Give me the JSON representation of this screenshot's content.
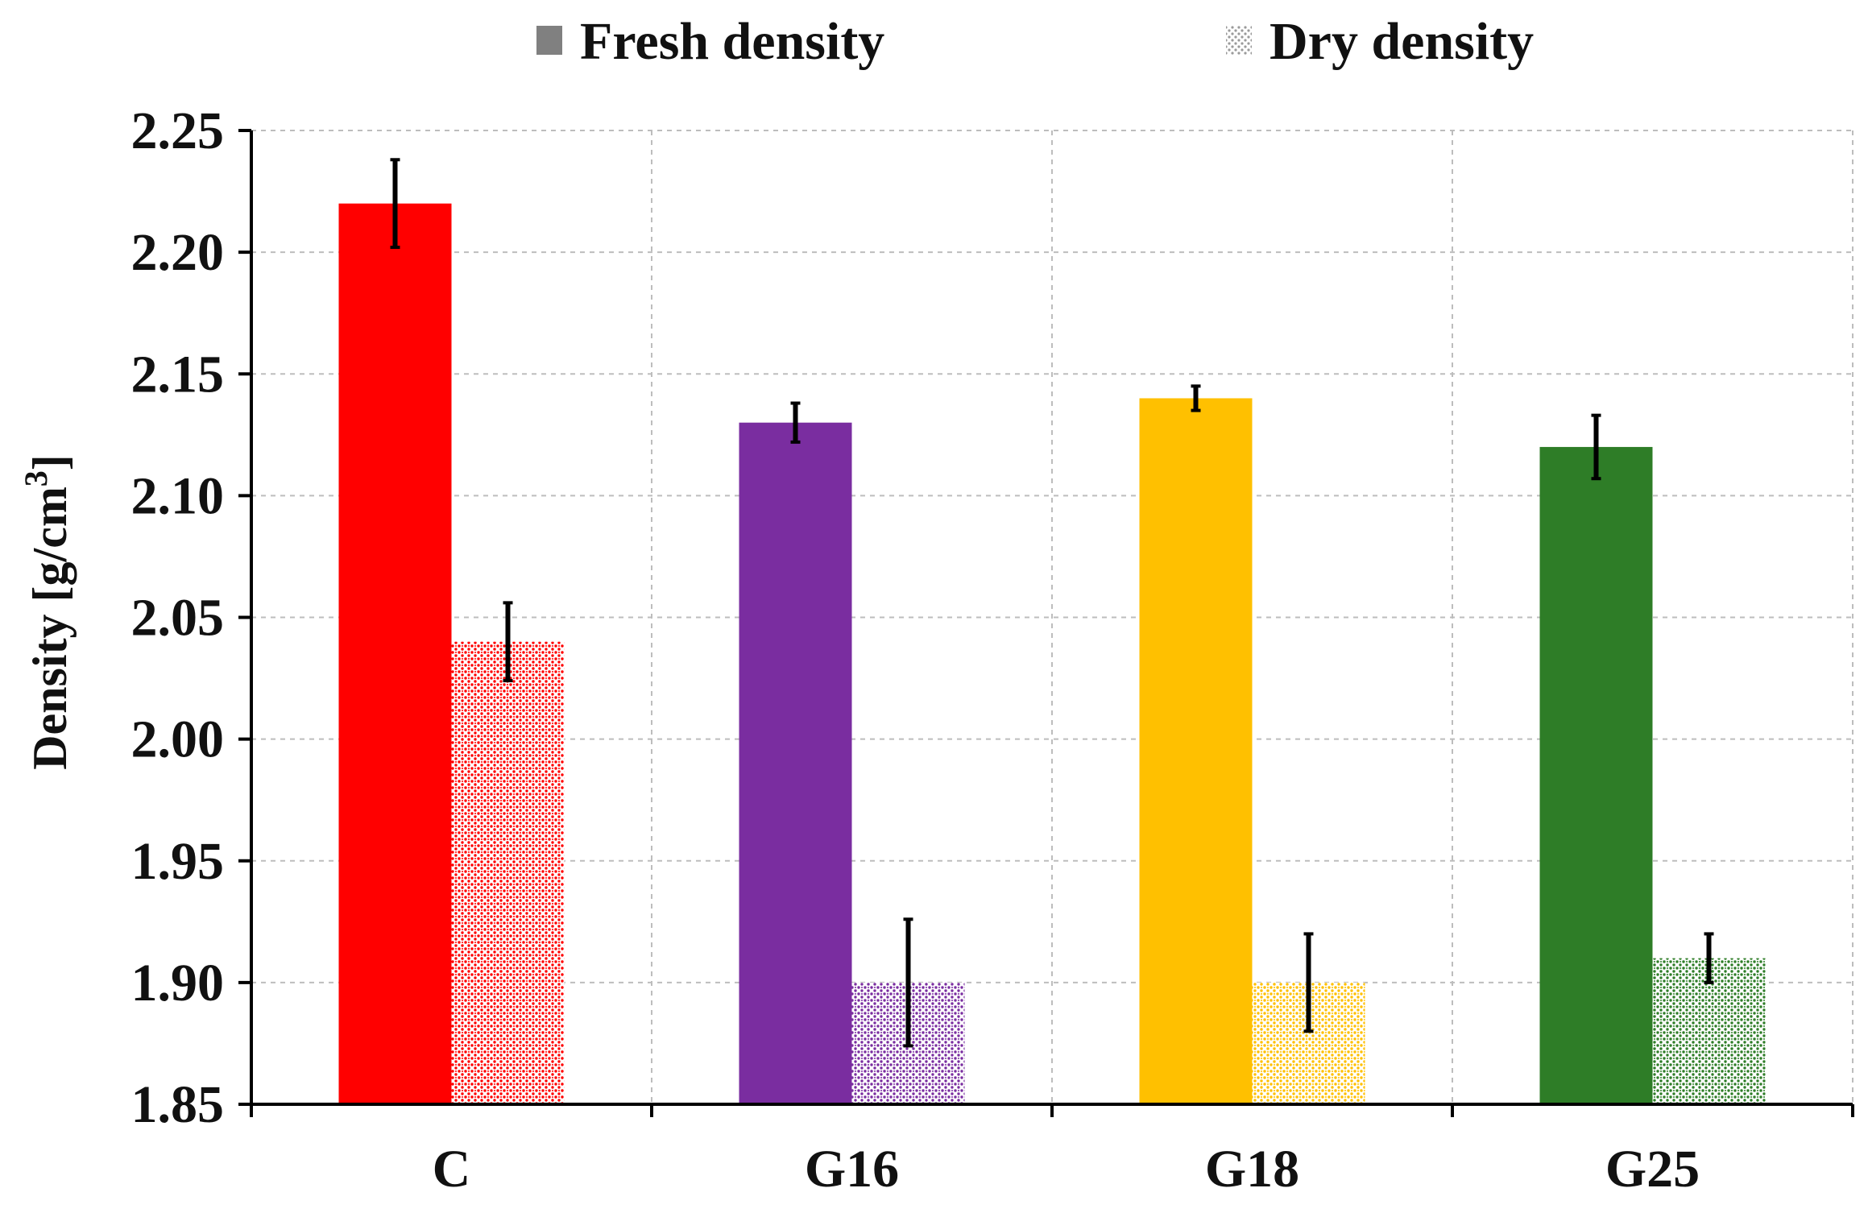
{
  "chart_data": {
    "type": "bar",
    "categories": [
      "C",
      "G16",
      "G18",
      "G25"
    ],
    "series": [
      {
        "name": "Fresh density",
        "values": [
          2.22,
          2.13,
          2.14,
          2.12
        ],
        "errors": [
          0.018,
          0.008,
          0.005,
          0.013
        ],
        "pattern": "solid"
      },
      {
        "name": "Dry density",
        "values": [
          2.04,
          1.9,
          1.9,
          1.91
        ],
        "errors": [
          0.016,
          0.026,
          0.02,
          0.01
        ],
        "pattern": "dotted"
      }
    ],
    "category_colors": [
      "#ff0000",
      "#7a2da0",
      "#ffc000",
      "#2e7d27"
    ],
    "legend_swatch_color": "#808080",
    "ylabel": "Density [g/cm",
    "ylabel_sup": "3",
    "ylabel_close": "]",
    "xlabel": "",
    "title": "",
    "ylim": [
      1.85,
      2.25
    ],
    "yticks": [
      "1.85",
      "1.90",
      "1.95",
      "2.00",
      "2.05",
      "2.10",
      "2.15",
      "2.20",
      "2.25"
    ],
    "grid": "dashed",
    "legend_position": "top"
  }
}
